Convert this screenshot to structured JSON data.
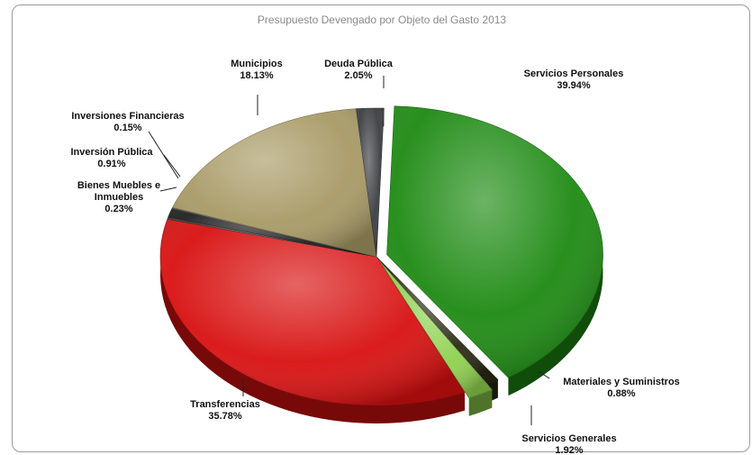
{
  "chart_data": {
    "type": "pie",
    "title": "Presupuesto Devengado por Objeto del Gasto 2013",
    "slices": [
      {
        "name": "Servicios Personales",
        "value": 39.94,
        "label_value": "39.94%",
        "color": "#1d8a12"
      },
      {
        "name": "Materiales y Suministros",
        "value": 0.88,
        "label_value": "0.88%",
        "color": "#2a2a14"
      },
      {
        "name": "Servicios Generales",
        "value": 1.92,
        "label_value": "1.92%",
        "color": "#8fd14f"
      },
      {
        "name": "Transferencias",
        "value": 35.78,
        "label_value": "35.78%",
        "color": "#d81010"
      },
      {
        "name": "Bienes Muebles e Inmuebles",
        "label_lines": [
          "Bienes Muebles e",
          "Inmuebles"
        ],
        "value": 0.23,
        "label_value": "0.23%",
        "color": "#3a3a3a"
      },
      {
        "name": "Inversión  Pública",
        "value": 0.91,
        "label_value": "0.91%",
        "color": "#1e1e1e"
      },
      {
        "name": "Inversiones Financieras",
        "value": 0.15,
        "label_value": "0.15%",
        "color": "#4a4a4a"
      },
      {
        "name": "Municipios",
        "value": 18.13,
        "label_value": "18.13%",
        "color": "#a89a66"
      },
      {
        "name": "Deuda Pública",
        "value": 2.05,
        "label_value": "2.05%",
        "color": "#3a3d40"
      }
    ]
  }
}
